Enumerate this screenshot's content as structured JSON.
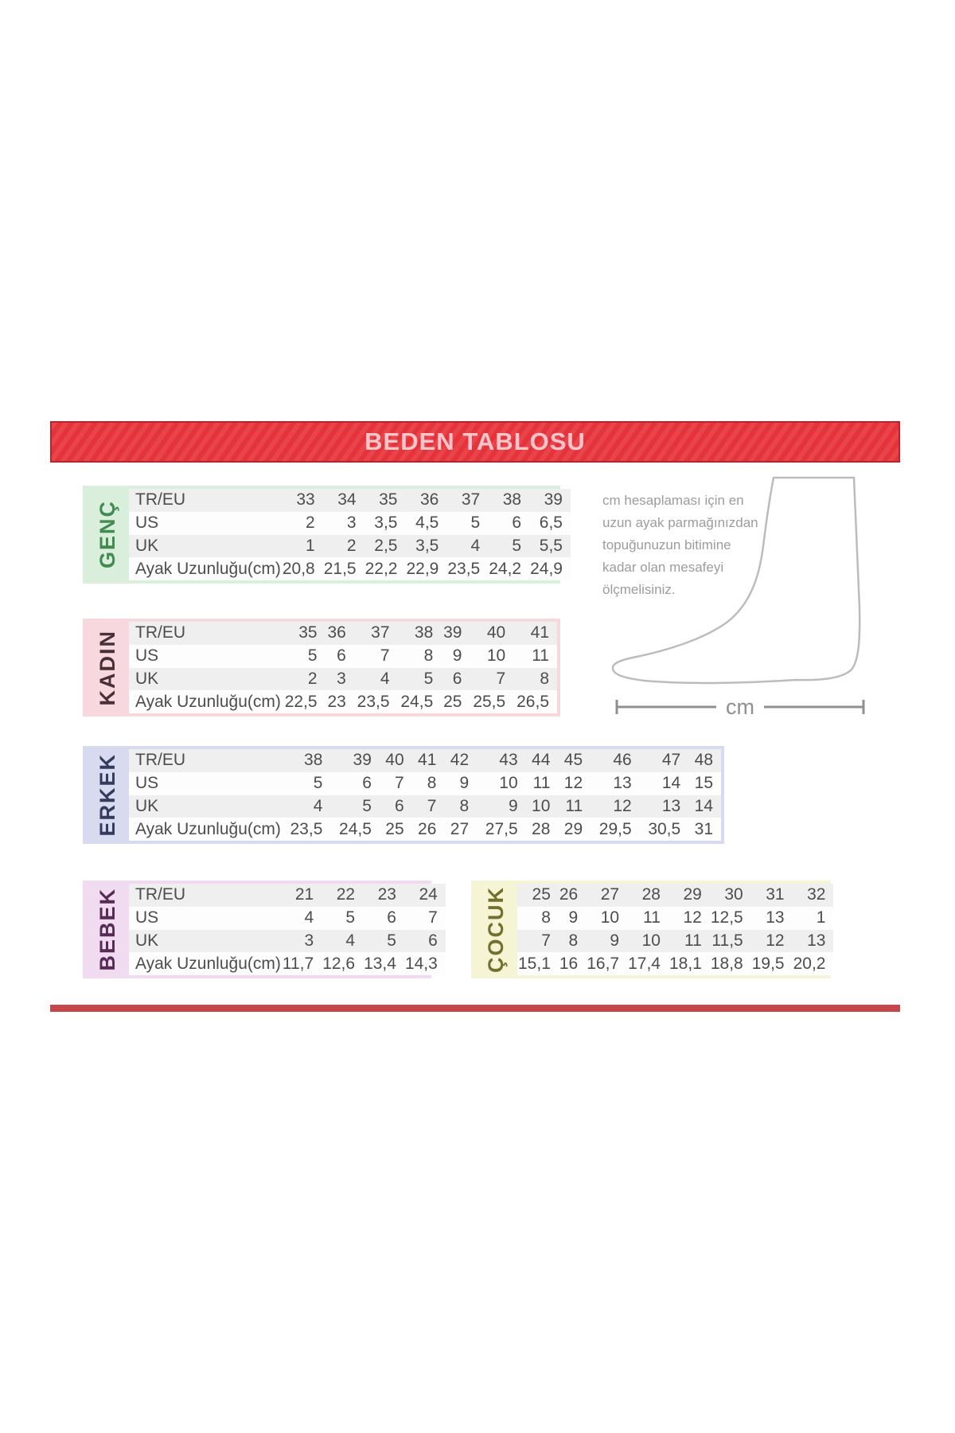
{
  "page": {
    "title": "BEDEN TABLOSU"
  },
  "colors": {
    "banner_red": "#e5333c",
    "banner_border": "#bf2129",
    "banner_text": "#f8c6ca",
    "bottom_rule_red": "#c4474c",
    "zebra_row_gray": "#efefef"
  },
  "measure_note": {
    "lines": [
      "cm hesaplaması için en",
      "uzun ayak parmağınızdan",
      "topuğunuzun bitimine",
      "kadar olan mesafeyi",
      "ölçmelisiniz."
    ],
    "unit_label": "cm"
  },
  "size_tables": [
    {
      "id": "genc",
      "label": "GENÇ",
      "bg": "#daefdb",
      "fg": "#418a50",
      "row_labels": [
        "TR/EU",
        "US",
        "UK",
        "Ayak Uzunluğu(cm)"
      ],
      "rows": [
        [
          "33",
          "34",
          "35",
          "36",
          "37",
          "38",
          "39"
        ],
        [
          "2",
          "3",
          "3,5",
          "4,5",
          "5",
          "6",
          "6,5"
        ],
        [
          "1",
          "2",
          "2,5",
          "3,5",
          "4",
          "5",
          "5,5"
        ],
        [
          "20,8",
          "21,5",
          "22,2",
          "22,9",
          "23,5",
          "24,2",
          "24,9"
        ]
      ]
    },
    {
      "id": "kadin",
      "label": "KADIN",
      "bg": "#f7d8de",
      "fg": "#483039",
      "row_labels": [
        "TR/EU",
        "US",
        "UK",
        "Ayak Uzunluğu(cm)"
      ],
      "rows": [
        [
          "35",
          "36",
          "37",
          "38",
          "39",
          "40",
          "41"
        ],
        [
          "5",
          "6",
          "7",
          "8",
          "9",
          "10",
          "11"
        ],
        [
          "2",
          "3",
          "4",
          "5",
          "6",
          "7",
          "8"
        ],
        [
          "22,5",
          "23",
          "23,5",
          "24,5",
          "25",
          "25,5",
          "26,5"
        ]
      ]
    },
    {
      "id": "erkek",
      "label": "ERKEK",
      "bg": "#d8daf0",
      "fg": "#343b5c",
      "row_labels": [
        "TR/EU",
        "US",
        "UK",
        "Ayak Uzunluğu(cm)"
      ],
      "rows": [
        [
          "38",
          "39",
          "40",
          "41",
          "42",
          "43",
          "44",
          "45",
          "46",
          "47",
          "48"
        ],
        [
          "5",
          "6",
          "7",
          "8",
          "9",
          "10",
          "11",
          "12",
          "13",
          "14",
          "15"
        ],
        [
          "4",
          "5",
          "6",
          "7",
          "8",
          "9",
          "10",
          "11",
          "12",
          "13",
          "14"
        ],
        [
          "23,5",
          "24,5",
          "25",
          "26",
          "27",
          "27,5",
          "28",
          "29",
          "29,5",
          "30,5",
          "31"
        ]
      ]
    },
    {
      "id": "bebek",
      "label": "BEBEK",
      "bg": "#f1dbf0",
      "fg": "#562c54",
      "row_labels": [
        "TR/EU",
        "US",
        "UK",
        "Ayak Uzunluğu(cm)"
      ],
      "rows": [
        [
          "21",
          "22",
          "23",
          "24"
        ],
        [
          "4",
          "5",
          "6",
          "7"
        ],
        [
          "3",
          "4",
          "5",
          "6"
        ],
        [
          "11,7",
          "12,6",
          "13,4",
          "14,3"
        ]
      ]
    },
    {
      "id": "cocuk",
      "label": "ÇOCUK",
      "bg": "#f5f4d4",
      "fg": "#71702f",
      "row_labels": [],
      "rows": [
        [
          "25",
          "26",
          "27",
          "28",
          "29",
          "30",
          "31",
          "32"
        ],
        [
          "8",
          "9",
          "10",
          "11",
          "12",
          "12,5",
          "13",
          "1"
        ],
        [
          "7",
          "8",
          "9",
          "10",
          "11",
          "11,5",
          "12",
          "13"
        ],
        [
          "15,1",
          "16",
          "16,7",
          "17,4",
          "18,1",
          "18,8",
          "19,5",
          "20,2"
        ]
      ]
    }
  ]
}
